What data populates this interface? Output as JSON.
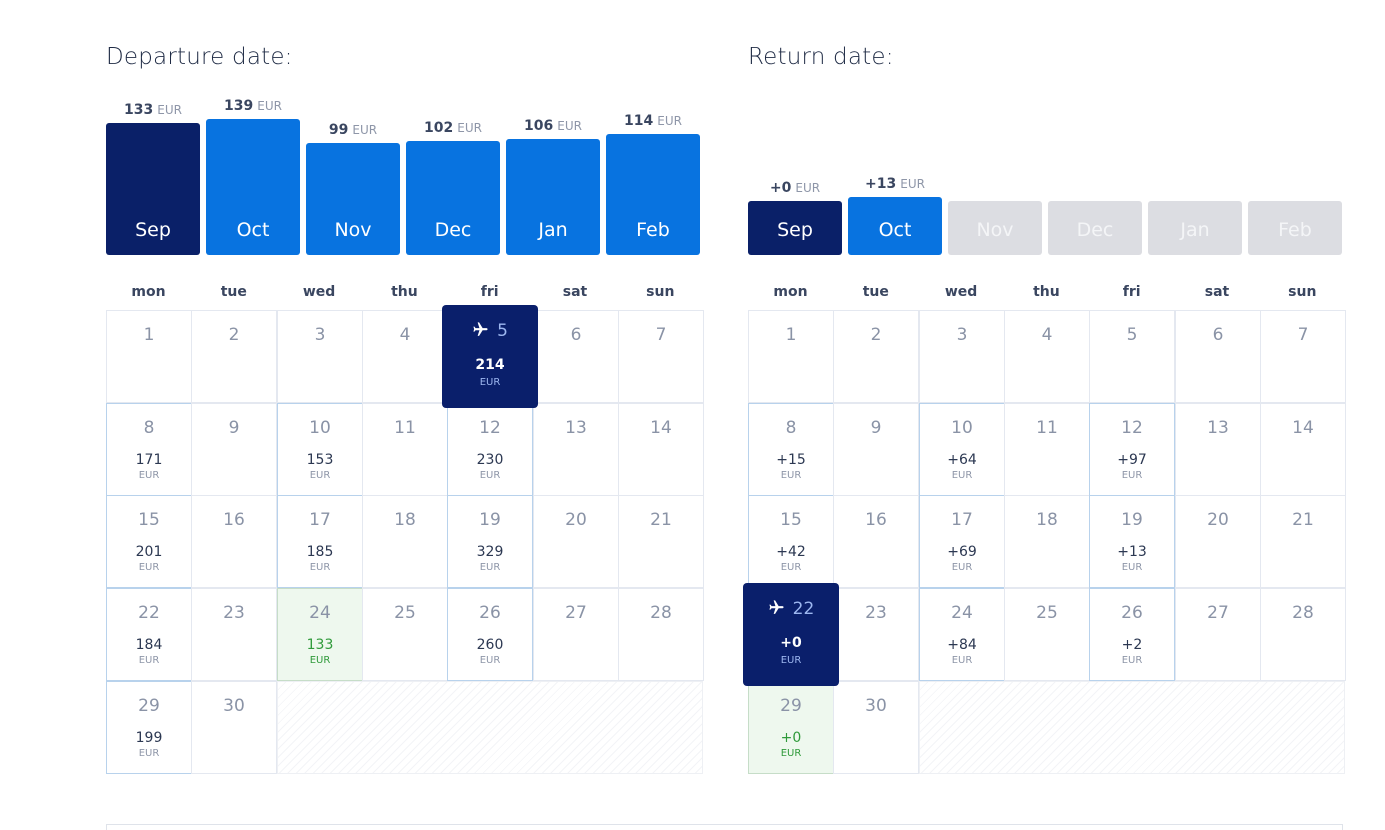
{
  "departure": {
    "title": "Departure date:",
    "currency": "EUR",
    "months": [
      {
        "label": "Sep",
        "price": "133",
        "level": 133,
        "state": "selected"
      },
      {
        "label": "Oct",
        "price": "139",
        "level": 139,
        "state": "available"
      },
      {
        "label": "Nov",
        "price": "99",
        "level": 99,
        "state": "available"
      },
      {
        "label": "Dec",
        "price": "102",
        "level": 102,
        "state": "available"
      },
      {
        "label": "Jan",
        "price": "106",
        "level": 106,
        "state": "available"
      },
      {
        "label": "Feb",
        "price": "114",
        "level": 114,
        "state": "available"
      }
    ],
    "weekdays": [
      "mon",
      "tue",
      "wed",
      "thu",
      "fri",
      "sat",
      "sun"
    ],
    "days": [
      {
        "d": "1"
      },
      {
        "d": "2"
      },
      {
        "d": "3"
      },
      {
        "d": "4"
      },
      {
        "d": "5",
        "price": "214",
        "selected": true
      },
      {
        "d": "6"
      },
      {
        "d": "7"
      },
      {
        "d": "8",
        "price": "171"
      },
      {
        "d": "9"
      },
      {
        "d": "10",
        "price": "153"
      },
      {
        "d": "11"
      },
      {
        "d": "12",
        "price": "230"
      },
      {
        "d": "13"
      },
      {
        "d": "14"
      },
      {
        "d": "15",
        "price": "201"
      },
      {
        "d": "16"
      },
      {
        "d": "17",
        "price": "185"
      },
      {
        "d": "18"
      },
      {
        "d": "19",
        "price": "329"
      },
      {
        "d": "20"
      },
      {
        "d": "21"
      },
      {
        "d": "22",
        "price": "184"
      },
      {
        "d": "23"
      },
      {
        "d": "24",
        "price": "133",
        "cheapest": true
      },
      {
        "d": "25"
      },
      {
        "d": "26",
        "price": "260"
      },
      {
        "d": "27"
      },
      {
        "d": "28"
      },
      {
        "d": "29",
        "price": "199"
      },
      {
        "d": "30"
      }
    ]
  },
  "return": {
    "title": "Return date:",
    "currency": "EUR",
    "months": [
      {
        "label": "Sep",
        "price": "+0",
        "level": 0,
        "state": "selected"
      },
      {
        "label": "Oct",
        "price": "+13",
        "level": 13,
        "state": "available"
      },
      {
        "label": "Nov",
        "state": "disabled"
      },
      {
        "label": "Dec",
        "state": "disabled"
      },
      {
        "label": "Jan",
        "state": "disabled"
      },
      {
        "label": "Feb",
        "state": "disabled"
      }
    ],
    "weekdays": [
      "mon",
      "tue",
      "wed",
      "thu",
      "fri",
      "sat",
      "sun"
    ],
    "days": [
      {
        "d": "1"
      },
      {
        "d": "2"
      },
      {
        "d": "3"
      },
      {
        "d": "4"
      },
      {
        "d": "5"
      },
      {
        "d": "6"
      },
      {
        "d": "7"
      },
      {
        "d": "8",
        "price": "+15"
      },
      {
        "d": "9"
      },
      {
        "d": "10",
        "price": "+64"
      },
      {
        "d": "11"
      },
      {
        "d": "12",
        "price": "+97"
      },
      {
        "d": "13"
      },
      {
        "d": "14"
      },
      {
        "d": "15",
        "price": "+42"
      },
      {
        "d": "16"
      },
      {
        "d": "17",
        "price": "+69"
      },
      {
        "d": "18"
      },
      {
        "d": "19",
        "price": "+13"
      },
      {
        "d": "20"
      },
      {
        "d": "21"
      },
      {
        "d": "22",
        "price": "+0",
        "selected": true
      },
      {
        "d": "23"
      },
      {
        "d": "24",
        "price": "+84"
      },
      {
        "d": "25"
      },
      {
        "d": "26",
        "price": "+2"
      },
      {
        "d": "27"
      },
      {
        "d": "28"
      },
      {
        "d": "29",
        "price": "+0",
        "cheapest": true
      },
      {
        "d": "30"
      }
    ]
  },
  "colors": {
    "selected": "#0a2068",
    "available": "#0873e0",
    "disabled": "#dcdde2",
    "cheapest_bg": "#eef8ee",
    "cheapest_text": "#2f9a3a"
  },
  "icons": {
    "selected_day": "airplane-icon"
  }
}
